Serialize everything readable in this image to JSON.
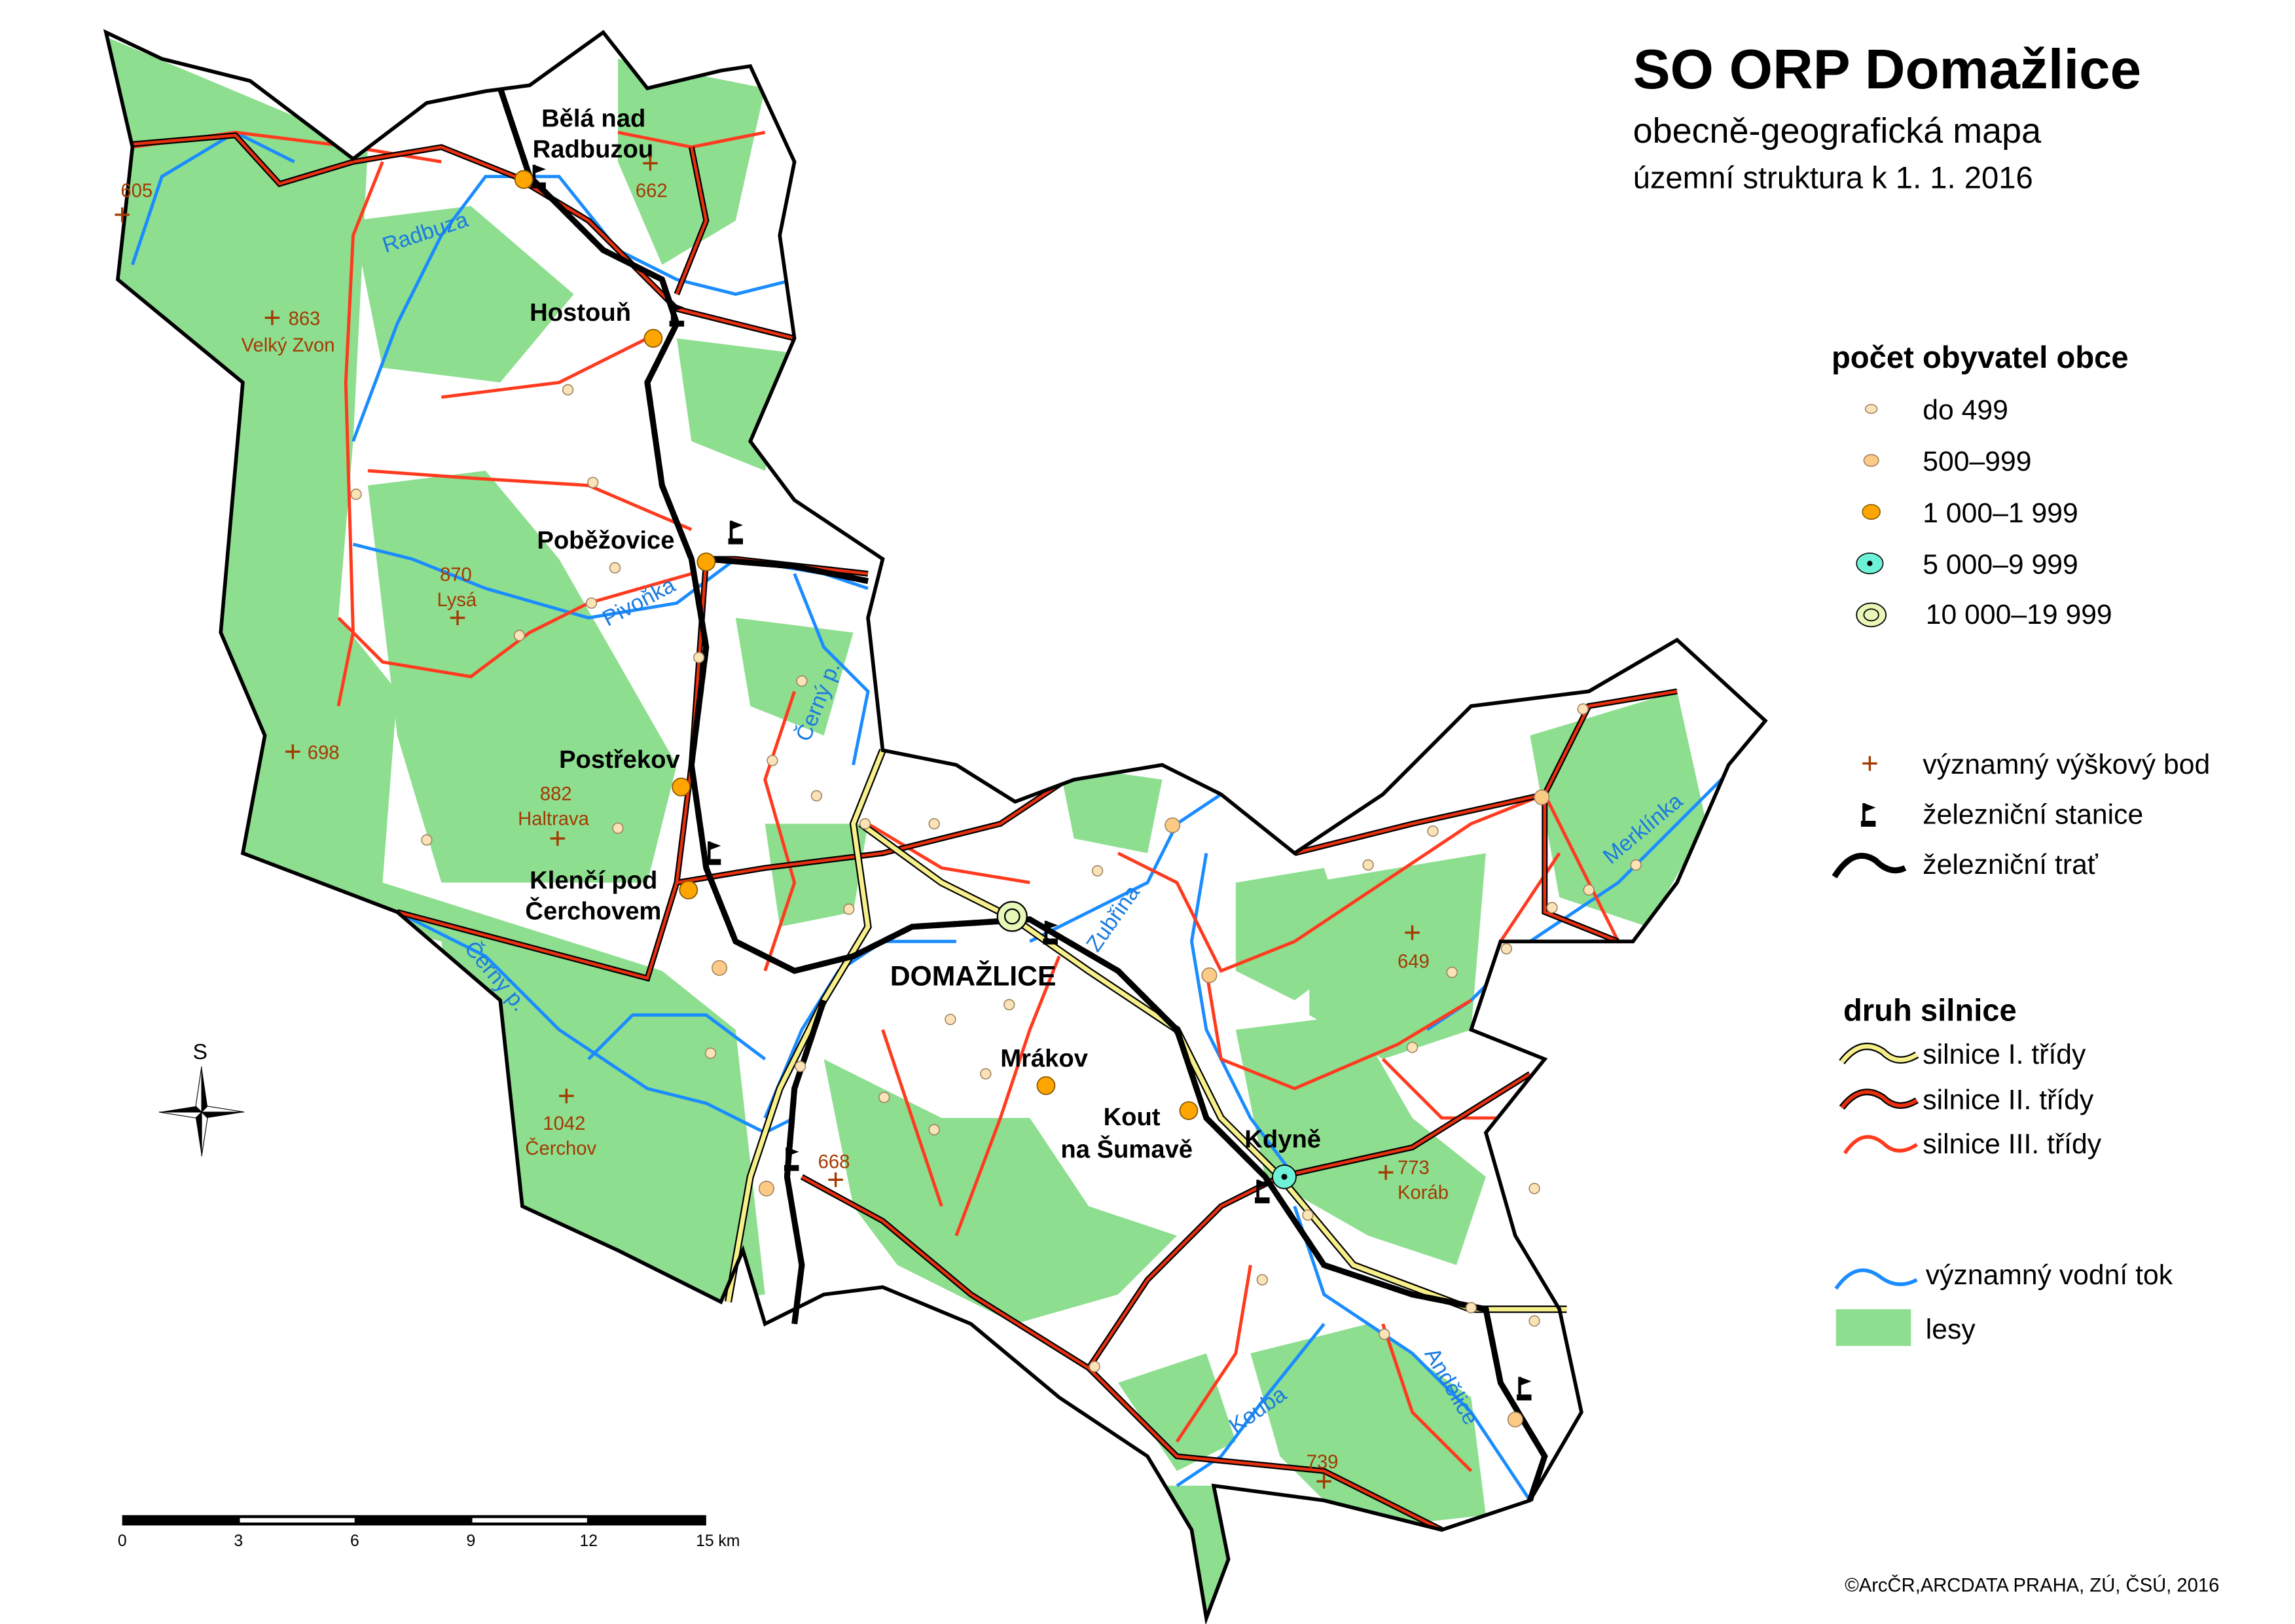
{
  "title": "SO ORP Domažlice",
  "subtitle": "obecně-geografická mapa",
  "subtitle2": "územní struktura k 1. 1. 2016",
  "colors": {
    "forest": "#8ede90",
    "river": "#1a8cff",
    "road1": "#f7f08a",
    "road2": "#e8300f",
    "road3": "#ff3b1f",
    "boundary": "#000000",
    "elevation": "#a33a00",
    "town_small": "#fbe3b8",
    "town_mid": "#fbcb85",
    "town_1000": "#ffa500",
    "town_5000": "#6ef2d7",
    "town_10000": "#e6f7b8"
  },
  "legend": {
    "population_title": "počet obyvatel obce",
    "population": [
      "do 499",
      "500–999",
      "1 000–1 999",
      "5 000–9 999",
      "10 000–19 999"
    ],
    "symbols": [
      "významný výškový bod",
      "železniční stanice",
      "železniční trať"
    ],
    "roads_title": "druh silnice",
    "roads": [
      "silnice I. třídy",
      "silnice II. třídy",
      "silnice III. třídy"
    ],
    "other": [
      "významný vodní tok",
      "lesy"
    ]
  },
  "towns": {
    "bela1": "Bělá nad",
    "bela2": "Radbuzou",
    "hostoun": "Hostouň",
    "pobezovice": "Poběžovice",
    "postrekov": "Postřekov",
    "klenci1": "Klenčí pod",
    "klenci2": "Čerchovem",
    "domazlice": "DOMAŽLICE",
    "mrakov": "Mrákov",
    "kout1": "Kout",
    "kout2": "na Šumavě",
    "kdyne": "Kdyně"
  },
  "elevations": {
    "e605": "605",
    "e662": "662",
    "e863": "863",
    "velkyzvon": "Velký Zvon",
    "e870": "870",
    "lysa": "Lysá",
    "e698": "698",
    "e882": "882",
    "haltrava": "Haltrava",
    "e1042": "1042",
    "cerchov": "Čerchov",
    "e668": "668",
    "e649": "649",
    "e773": "773",
    "korab": "Koráb",
    "e739": "739"
  },
  "rivers": {
    "radbuza": "Radbuza",
    "pivonka": "Pivoňka",
    "cerny1": "Černý p.",
    "cerny2": "Černý p.",
    "zubrina": "Zubřina",
    "merklinka": "Merklínka",
    "kouba": "Kouba",
    "andelice": "Andělice"
  },
  "compass": "S",
  "scale": [
    "0",
    "3",
    "6",
    "9",
    "12",
    "15 km"
  ],
  "copyright": "©ArcČR,ARCDATA PRAHA, ZÚ, ČSÚ, 2016"
}
